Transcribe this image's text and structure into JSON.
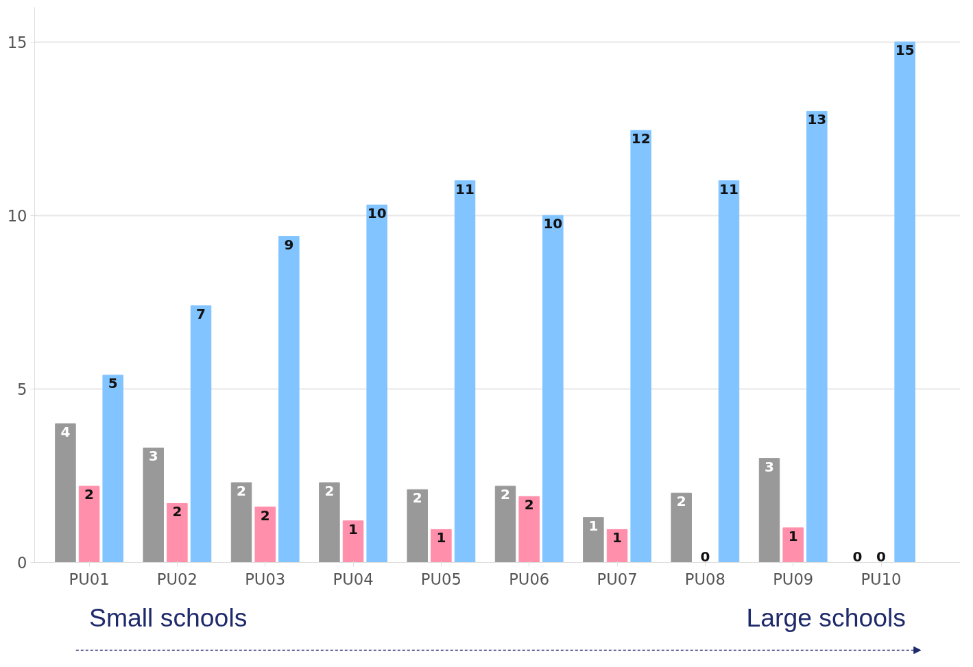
{
  "chart_data": {
    "type": "bar",
    "categories": [
      "PU01",
      "PU02",
      "PU03",
      "PU04",
      "PU05",
      "PU06",
      "PU07",
      "PU08",
      "PU09",
      "PU10"
    ],
    "series": [
      {
        "color": "#999999",
        "values": [
          4.0,
          3.3,
          2.3,
          2.3,
          2.1,
          2.2,
          1.3,
          2.0,
          3.0,
          0
        ],
        "value_labels": [
          "4",
          "3",
          "2",
          "2",
          "2",
          "2",
          "1",
          "2",
          "3",
          "0"
        ]
      },
      {
        "color": "#ff8fab",
        "values": [
          2.2,
          1.7,
          1.6,
          1.2,
          0.95,
          1.9,
          0.95,
          0,
          1.0,
          0
        ],
        "value_labels": [
          "2",
          "2",
          "2",
          "1",
          "1",
          "2",
          "1",
          "0",
          "1",
          "0"
        ]
      },
      {
        "color": "#82c4ff",
        "values": [
          5.4,
          7.4,
          9.4,
          10.3,
          11.0,
          10.0,
          12.45,
          11.0,
          13.0,
          15.0
        ],
        "value_labels": [
          "5",
          "7",
          "9",
          "10",
          "11",
          "10",
          "12",
          "11",
          "13",
          "15"
        ]
      }
    ],
    "ylim": [
      0,
      16
    ],
    "yticks": [
      0,
      5,
      10,
      15
    ],
    "grid": "y",
    "annotations": [
      "Small schools",
      "Large schools"
    ]
  }
}
